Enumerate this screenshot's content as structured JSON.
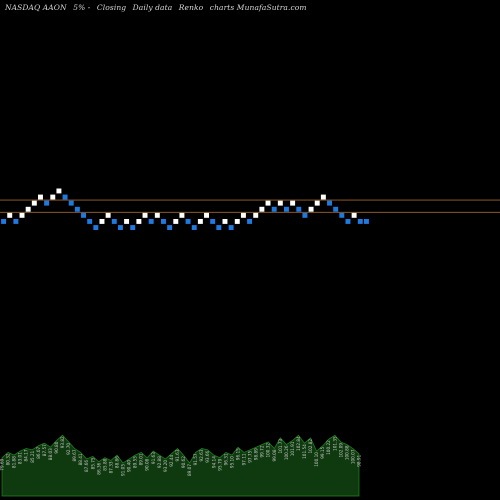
{
  "header": {
    "ticker": "NASDAQ AAON",
    "change": "5% -",
    "basis": "Closing",
    "interval": "Daily data",
    "chart_kind": "Renko",
    "suffix": "charts MunafaSutra.com"
  },
  "colors": {
    "background": "#000000",
    "up_brick": "#ffffff",
    "down_brick": "#1f7ae0",
    "ref_line": "#a0642a",
    "volume_fill": "#0f3a0f",
    "volume_stroke": "#1f8a1f",
    "volume_label": "#c8c8c8"
  },
  "chart_data": {
    "type": "renko",
    "reference_levels": [
      6.5,
      4.5
    ],
    "bricks": [
      {
        "level": 3,
        "dir": "down"
      },
      {
        "level": 4,
        "dir": "up"
      },
      {
        "level": 3,
        "dir": "down"
      },
      {
        "level": 4,
        "dir": "up"
      },
      {
        "level": 5,
        "dir": "up"
      },
      {
        "level": 6,
        "dir": "up"
      },
      {
        "level": 7,
        "dir": "up"
      },
      {
        "level": 6,
        "dir": "down"
      },
      {
        "level": 7,
        "dir": "up"
      },
      {
        "level": 8,
        "dir": "up"
      },
      {
        "level": 7,
        "dir": "down"
      },
      {
        "level": 6,
        "dir": "down"
      },
      {
        "level": 5,
        "dir": "down"
      },
      {
        "level": 4,
        "dir": "down"
      },
      {
        "level": 3,
        "dir": "down"
      },
      {
        "level": 2,
        "dir": "down"
      },
      {
        "level": 3,
        "dir": "up"
      },
      {
        "level": 4,
        "dir": "up"
      },
      {
        "level": 3,
        "dir": "down"
      },
      {
        "level": 2,
        "dir": "down"
      },
      {
        "level": 3,
        "dir": "up"
      },
      {
        "level": 2,
        "dir": "down"
      },
      {
        "level": 3,
        "dir": "up"
      },
      {
        "level": 4,
        "dir": "up"
      },
      {
        "level": 3,
        "dir": "down"
      },
      {
        "level": 4,
        "dir": "up"
      },
      {
        "level": 3,
        "dir": "down"
      },
      {
        "level": 2,
        "dir": "down"
      },
      {
        "level": 3,
        "dir": "up"
      },
      {
        "level": 4,
        "dir": "up"
      },
      {
        "level": 3,
        "dir": "down"
      },
      {
        "level": 2,
        "dir": "down"
      },
      {
        "level": 3,
        "dir": "up"
      },
      {
        "level": 4,
        "dir": "up"
      },
      {
        "level": 3,
        "dir": "down"
      },
      {
        "level": 2,
        "dir": "down"
      },
      {
        "level": 3,
        "dir": "up"
      },
      {
        "level": 2,
        "dir": "down"
      },
      {
        "level": 3,
        "dir": "up"
      },
      {
        "level": 4,
        "dir": "up"
      },
      {
        "level": 3,
        "dir": "down"
      },
      {
        "level": 4,
        "dir": "up"
      },
      {
        "level": 5,
        "dir": "up"
      },
      {
        "level": 6,
        "dir": "up"
      },
      {
        "level": 5,
        "dir": "down"
      },
      {
        "level": 6,
        "dir": "up"
      },
      {
        "level": 5,
        "dir": "down"
      },
      {
        "level": 6,
        "dir": "up"
      },
      {
        "level": 5,
        "dir": "down"
      },
      {
        "level": 4,
        "dir": "down"
      },
      {
        "level": 5,
        "dir": "up"
      },
      {
        "level": 6,
        "dir": "up"
      },
      {
        "level": 7,
        "dir": "up"
      },
      {
        "level": 6,
        "dir": "down"
      },
      {
        "level": 5,
        "dir": "down"
      },
      {
        "level": 4,
        "dir": "down"
      },
      {
        "level": 3,
        "dir": "down"
      },
      {
        "level": 4,
        "dir": "up"
      },
      {
        "level": 3,
        "dir": "down"
      },
      {
        "level": 3,
        "dir": "down"
      }
    ],
    "volume": {
      "values": [
        58,
        66,
        62,
        68,
        72,
        70,
        76,
        80,
        74,
        84,
        92,
        82,
        72,
        66,
        56,
        60,
        52,
        58,
        54,
        62,
        50,
        56,
        62,
        66,
        58,
        68,
        62,
        56,
        64,
        72,
        62,
        50,
        66,
        72,
        70,
        62,
        58,
        66,
        62,
        74,
        66,
        70,
        74,
        78,
        82,
        72,
        88,
        78,
        84,
        92,
        80,
        88,
        68,
        76,
        86,
        92,
        82,
        78,
        72,
        64
      ],
      "labels": [
        "79.69",
        "80.32",
        "81.88",
        "83.01",
        "84.17",
        "85.21",
        "86.07",
        "87.57",
        "88.03",
        "90.80",
        "93.82",
        "92.70",
        "89.67",
        "88.41",
        "87.66",
        "85.75",
        "86.36",
        "85.88",
        "87.33",
        "88.86",
        "91.05",
        "90.40",
        "89.55",
        "89.01",
        "90.08",
        "91.63",
        "92.88",
        "93.20",
        "92.44",
        "91.63",
        "90.62",
        "89.07",
        "91.57",
        "92.63",
        "93.66",
        "94.14",
        "95.79",
        "96.31",
        "95.10",
        "96.15",
        "97.11",
        "97.75",
        "98.89",
        "99.72",
        "100.32",
        "99.08",
        "101.73",
        "100.26",
        "101.91",
        "102.84",
        "101.54",
        "102.82",
        "100.10",
        "99.15",
        "100.22",
        "101.35",
        "102.09",
        "100.88",
        "100.07",
        "98.91"
      ],
      "max": 100
    }
  }
}
